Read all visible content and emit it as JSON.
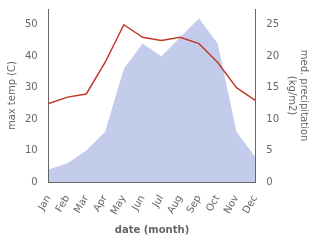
{
  "chart_data": {
    "type": "line",
    "categories": [
      "Jan",
      "Feb",
      "Mar",
      "Apr",
      "May",
      "Jun",
      "Jul",
      "Aug",
      "Sep",
      "Oct",
      "Nov",
      "Dec"
    ],
    "xlabel": "date (month)",
    "ylabel": "max temp (C)",
    "y2label": "med. precipitation\n(kg/m2)",
    "series": [
      {
        "type": "area",
        "color": "#b8c4e8",
        "axis": "y2",
        "values": [
          2,
          3,
          5,
          8,
          18,
          22,
          20,
          23,
          26,
          22,
          8,
          4
        ]
      },
      {
        "type": "line",
        "color": "#c0392b",
        "values": [
          25,
          27,
          28,
          38,
          50,
          46,
          45,
          46,
          44,
          38,
          30,
          26
        ]
      }
    ],
    "ylim": [
      0,
      55
    ],
    "yticks": [
      0,
      10,
      20,
      30,
      40,
      50
    ],
    "y2lim": [
      0,
      27.5
    ],
    "y2ticks": [
      0,
      5,
      10,
      15,
      20,
      25
    ],
    "grid": false
  }
}
